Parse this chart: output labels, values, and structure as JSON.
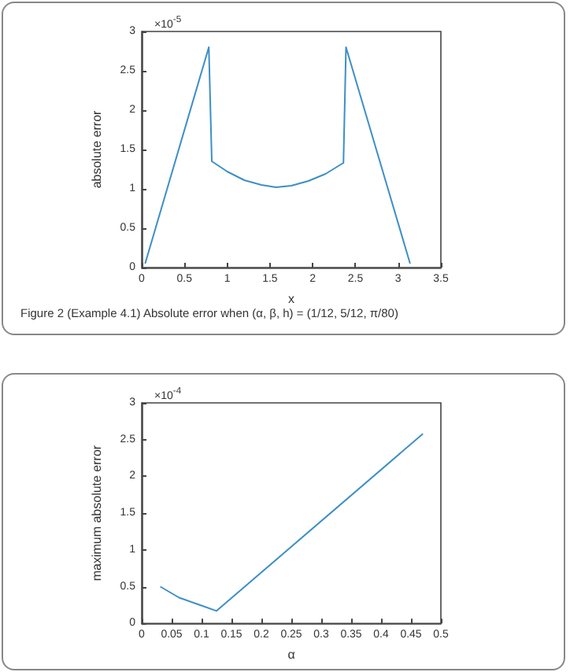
{
  "chart_data": [
    {
      "type": "line",
      "title": "Figure 2 (Example 4.1) Absolute error when (α, β, h) = (1/12, 5/12, π/80)",
      "xlabel": "x",
      "ylabel": "absolute error",
      "annotations": [
        "×10$^{-5}$"
      ],
      "color": "#3d8fc6",
      "x": [
        0.04,
        0.785,
        0.82,
        1.0,
        1.2,
        1.4,
        1.57,
        1.75,
        1.95,
        2.15,
        2.36,
        2.39,
        3.14
      ],
      "values": [
        0.05,
        2.8,
        1.35,
        1.22,
        1.11,
        1.05,
        1.02,
        1.04,
        1.1,
        1.19,
        1.33,
        2.8,
        0.05
      ],
      "xlim": [
        0,
        3.5
      ],
      "xticks": [
        0,
        0.5,
        1,
        1.5,
        2,
        2.5,
        3,
        3.5
      ],
      "ylim": [
        0,
        3
      ],
      "yticks": [
        0,
        0.5,
        1,
        1.5,
        2,
        2.5,
        3
      ]
    },
    {
      "type": "line",
      "xlabel": "α",
      "ylabel": "maximum absolute error",
      "annotations": [
        "×10$^{-4}$"
      ],
      "color": "#3d8fc6",
      "x": [
        0.031,
        0.0625,
        0.125,
        0.47
      ],
      "values": [
        0.5,
        0.35,
        0.17,
        2.58
      ],
      "xlim": [
        0,
        0.5
      ],
      "xticks": [
        0,
        0.05,
        0.1,
        0.15,
        0.2,
        0.25,
        0.3,
        0.35,
        0.4,
        0.45,
        0.5
      ],
      "ylim": [
        0,
        3
      ],
      "yticks": [
        0,
        0.5,
        1,
        1.5,
        2,
        2.5,
        3
      ]
    }
  ]
}
